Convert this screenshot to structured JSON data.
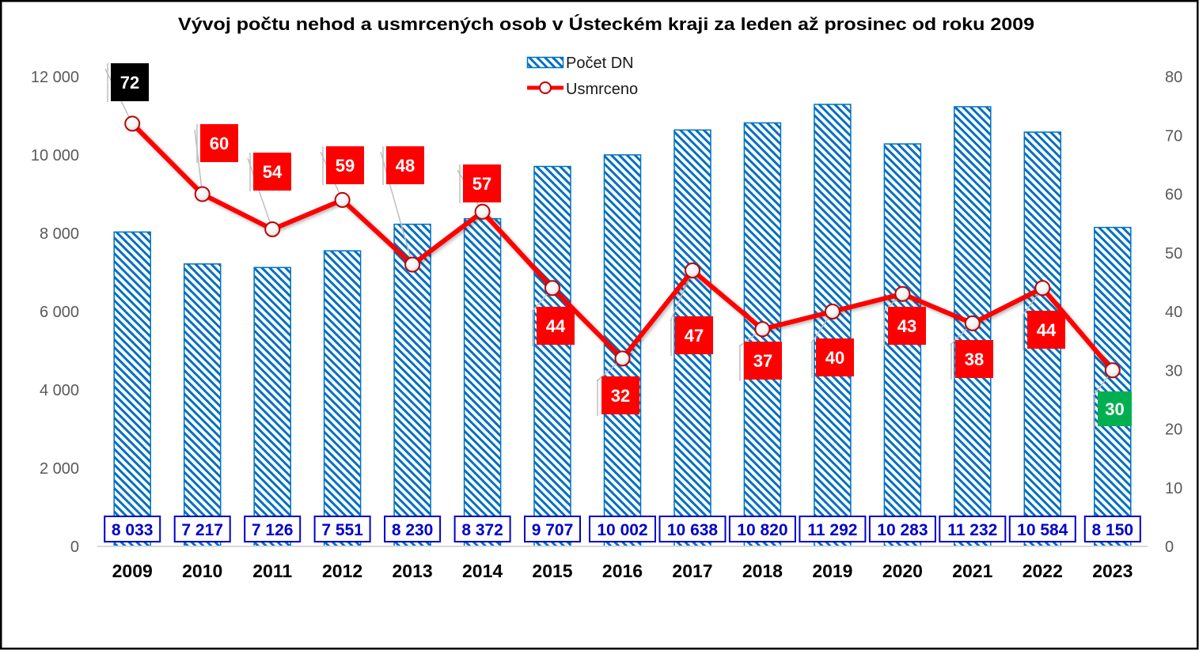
{
  "chart_data": {
    "type": "bar",
    "title": "Vývoj počtu nehod a usmrcených osob v Ústeckém kraji za leden až prosinec od roku 2009",
    "categories": [
      "2009",
      "2010",
      "2011",
      "2012",
      "2013",
      "2014",
      "2015",
      "2016",
      "2017",
      "2018",
      "2019",
      "2020",
      "2021",
      "2022",
      "2023"
    ],
    "series": [
      {
        "name": "Počet DN",
        "values": [
          8033,
          7217,
          7126,
          7551,
          8230,
          8372,
          9707,
          10002,
          10638,
          10820,
          11292,
          10283,
          11232,
          10584,
          8150
        ],
        "labels": [
          "8 033",
          "7 217",
          "7 126",
          "7 551",
          "8 230",
          "8 372",
          "9 707",
          "10 002",
          "10 638",
          "10 820",
          "11 292",
          "10 283",
          "11 232",
          "10 584",
          "8 150"
        ],
        "color": "#0070C0",
        "label_color": "#0000CC"
      },
      {
        "name": "Usmrceno",
        "type": "line",
        "values": [
          72,
          60,
          54,
          59,
          48,
          57,
          44,
          32,
          47,
          37,
          40,
          43,
          38,
          44,
          30
        ],
        "color": "#FF0000",
        "label_colors": [
          "#000000",
          "#FF0000",
          "#FF0000",
          "#FF0000",
          "#FF0000",
          "#FF0000",
          "#FF0000",
          "#FF0000",
          "#FF0000",
          "#FF0000",
          "#FF0000",
          "#FF0000",
          "#FF0000",
          "#FF0000",
          "#00B050"
        ]
      }
    ],
    "y_left": {
      "ylim": [
        0,
        12000
      ],
      "ticks": [
        0,
        2000,
        4000,
        6000,
        8000,
        10000,
        12000
      ],
      "tick_labels": [
        "0",
        "2 000",
        "4 000",
        "6 000",
        "8 000",
        "10 000",
        "12 000"
      ]
    },
    "y_right": {
      "ylim": [
        0,
        80
      ],
      "ticks": [
        0,
        10,
        20,
        30,
        40,
        50,
        60,
        70,
        80
      ],
      "tick_labels": [
        "0",
        "10",
        "20",
        "30",
        "40",
        "50",
        "60",
        "70",
        "80"
      ]
    },
    "grid": false,
    "legend": "top-center"
  }
}
